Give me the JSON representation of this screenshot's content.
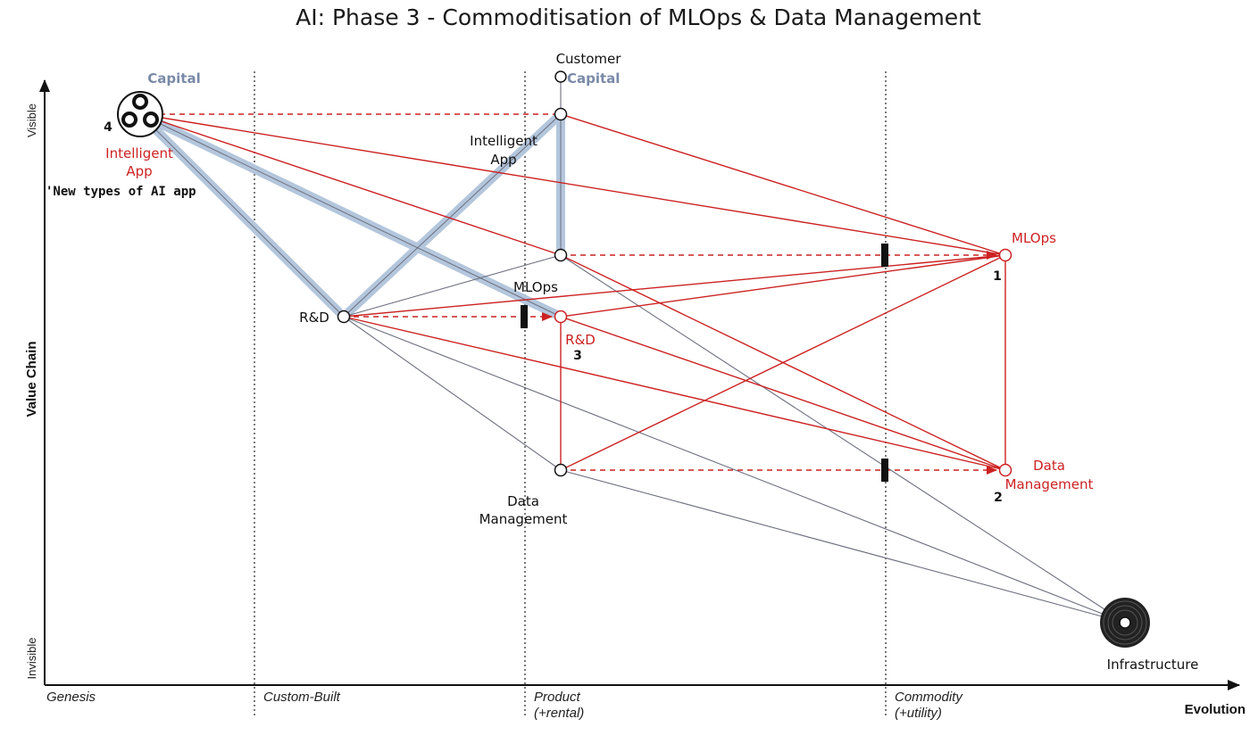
{
  "title": "AI: Phase 3 - Commoditisation of MLOps & Data Management",
  "axes": {
    "x_label": "Evolution",
    "y_label": "Value Chain",
    "y_top": "Visible",
    "y_bottom": "Invisible"
  },
  "stages": {
    "genesis": "Genesis",
    "custom": "Custom-Built",
    "product_1": "Product",
    "product_2": "(+rental)",
    "commodity_1": "Commodity",
    "commodity_2": "(+utility)"
  },
  "nodes": {
    "customer": "Customer",
    "capital_left": "Capital",
    "capital_mid": "Capital",
    "intelligent_app_left_1": "Intelligent",
    "intelligent_app_left_2": "App",
    "new_types": "'New types of AI app",
    "num_4": "4",
    "intelligent_app_mid_1": "Intelligent",
    "intelligent_app_mid_2": "App",
    "mlops_mid": "MLOps",
    "rd_left": "R&D",
    "rd_mid": "R&D",
    "num_3": "3",
    "data_mgmt_mid_1": "Data",
    "data_mgmt_mid_2": "Management",
    "mlops_right": "MLOps",
    "num_1": "1",
    "data_mgmt_right_1": "Data",
    "data_mgmt_right_2": "Management",
    "num_2": "2",
    "infrastructure": "Infrastructure"
  },
  "colors": {
    "red": "#cc2222",
    "blue_pipeline": "#b3c6dc",
    "grey_link": "#6e7080",
    "ink": "#111111"
  }
}
